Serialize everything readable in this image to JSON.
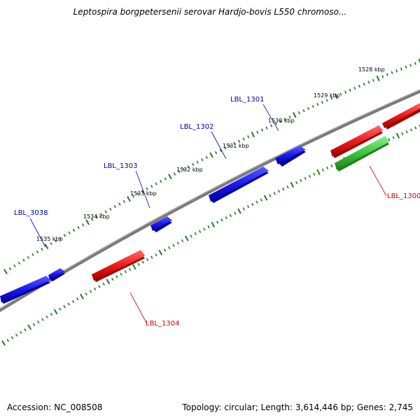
{
  "title": "Leptospira borgpetersenii serovar Hardjo-bovis L550 chromoso...",
  "footer": {
    "accession": "Accession: NC_008508",
    "summary": "Topology: circular; Length: 3,614,446 bp; Genes: 2,745"
  },
  "colors": {
    "forward_gene": "#1a1aee",
    "reverse_gene": "#ee1a1a",
    "other_gene": "#3ec43e",
    "backbone": "#7a7a7a",
    "ticks": "#1f7a1f",
    "forward_label": "#0000aa",
    "reverse_label": "#cc0000"
  },
  "scale_labels": [
    "1528 kbp",
    "1529 kbp",
    "1530 kbp",
    "1531 kbp",
    "1532 kbp",
    "1533 kbp",
    "1534 kbp",
    "1535 kbp"
  ],
  "gene_labels": {
    "forward": [
      "LBL_1301",
      "LBL_1302",
      "LBL_1303",
      "LBL_3038"
    ],
    "reverse": [
      "LBL_1300",
      "LBL_1304"
    ]
  }
}
